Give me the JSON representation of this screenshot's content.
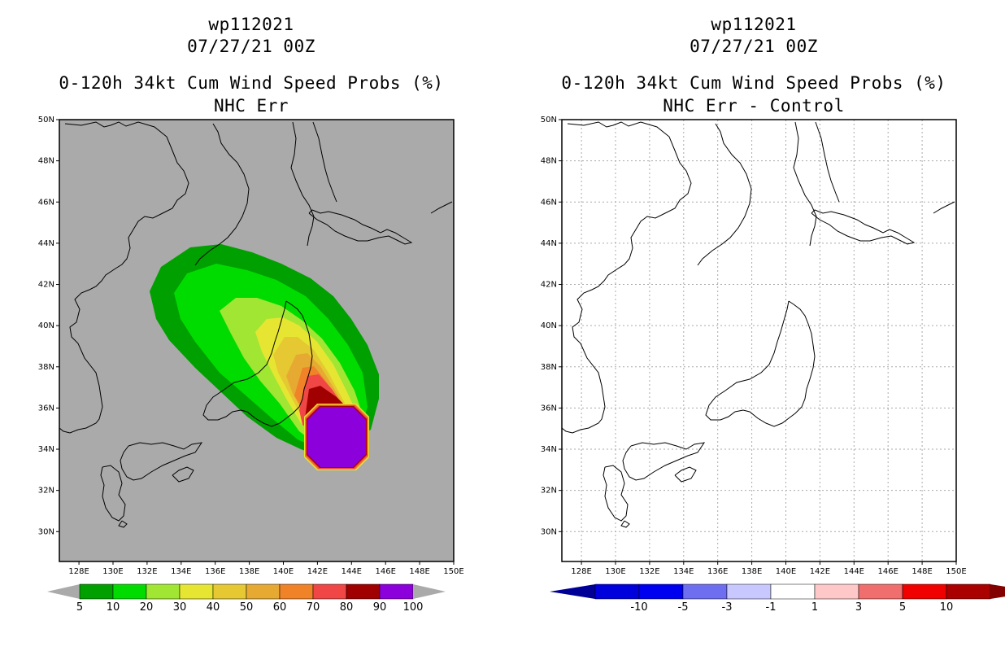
{
  "panels": [
    {
      "id": "left",
      "storm_id": "wp112021",
      "datetime": "07/27/21 00Z",
      "product": "0-120h 34kt Cum Wind Speed Probs (%)",
      "subtitle": "NHC Err",
      "background": "#aaaaaa",
      "colorbar": {
        "labels": [
          "5",
          "10",
          "20",
          "30",
          "40",
          "50",
          "60",
          "70",
          "80",
          "90",
          "100"
        ],
        "colors": [
          "#00a000",
          "#00dc00",
          "#a0e632",
          "#e6e632",
          "#e6c832",
          "#e6aa32",
          "#f08228",
          "#f04646",
          "#a00000",
          "#8c00dc"
        ],
        "end_color": "#aaaaaa"
      }
    },
    {
      "id": "right",
      "storm_id": "wp112021",
      "datetime": "07/27/21 00Z",
      "product": "0-120h 34kt Cum Wind Speed Probs (%)",
      "subtitle": "NHC Err - Control",
      "background": "#ffffff",
      "colorbar": {
        "labels": [
          "-10",
          "-5",
          "-3",
          "-1",
          "1",
          "3",
          "5",
          "10"
        ],
        "colors": [
          "#0000dc",
          "#0000f0",
          "#6e6ef0",
          "#c8c8ff",
          "#ffffff",
          "#ffc8c8",
          "#f06e6e",
          "#f00000",
          "#aa0000"
        ],
        "low_end_color": "#000096",
        "high_end_color": "#820000"
      }
    }
  ],
  "map": {
    "lat_labels": [
      "50N",
      "48N",
      "46N",
      "44N",
      "42N",
      "40N",
      "38N",
      "36N",
      "34N",
      "32N",
      "30N"
    ],
    "lon_labels": [
      "128E",
      "130E",
      "132E",
      "134E",
      "136E",
      "138E",
      "140E",
      "142E",
      "144E",
      "146E",
      "148E",
      "150E"
    ],
    "coastline_color": "#000000",
    "grid_color": "#aaaaaa"
  },
  "probability_contours": [
    {
      "level": 5,
      "color": "#00a000"
    },
    {
      "level": 10,
      "color": "#00dc00"
    },
    {
      "level": 20,
      "color": "#a0e632"
    },
    {
      "level": 30,
      "color": "#e6e632"
    },
    {
      "level": 40,
      "color": "#e6c832"
    },
    {
      "level": 50,
      "color": "#e6aa32"
    },
    {
      "level": 60,
      "color": "#f08228"
    },
    {
      "level": 70,
      "color": "#f04646"
    },
    {
      "level": 80,
      "color": "#a00000"
    },
    {
      "level": 90,
      "color": "#8c00dc"
    }
  ]
}
